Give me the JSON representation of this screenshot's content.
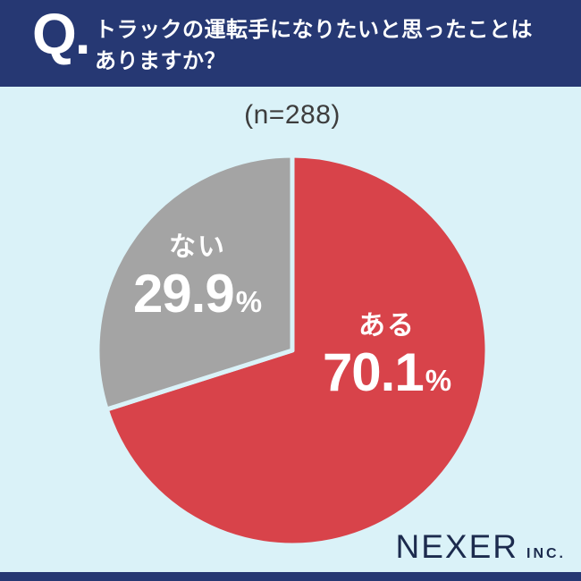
{
  "header": {
    "q_mark": "Q.",
    "question_line1": "トラックの運転手になりたいと思ったことは",
    "question_line2": "ありますか？"
  },
  "chart_data": {
    "type": "pie",
    "title": "トラックの運転手になりたいと思ったことはありますか？",
    "sample_size_label": "(n=288)",
    "n": 288,
    "start_angle_deg": 0,
    "direction": "clockwise",
    "legend_position": "inside",
    "slices": [
      {
        "label": "ある",
        "value": 70.1,
        "display": "70.1",
        "unit": "%",
        "color": "#d8434a"
      },
      {
        "label": "ない",
        "value": 29.9,
        "display": "29.9",
        "unit": "%",
        "color": "#a4a4a4"
      }
    ],
    "divider_color": "#daf2f8",
    "label_color": "#ffffff"
  },
  "footer": {
    "brand": "NEXER",
    "brand_suffix": "INC."
  },
  "colors": {
    "header_navy": "#263873",
    "background_blue": "#daf2f8",
    "sample_text": "#3d3d3d",
    "brand_navy": "#1c2b4e"
  }
}
